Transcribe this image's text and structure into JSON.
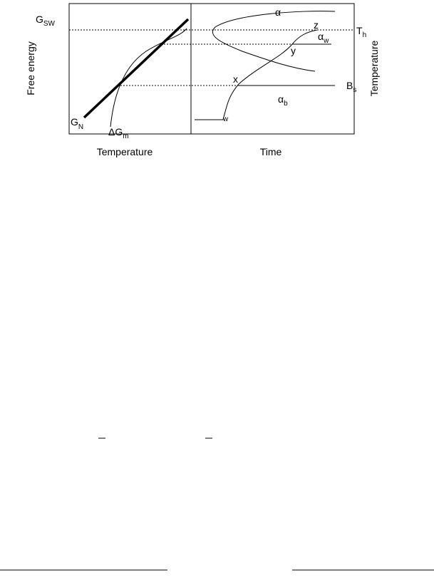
{
  "left_panel": {
    "y_axis_label": "Free energy",
    "x_axis_label": "Temperature",
    "g_sw": {
      "main": "G",
      "sub": "SW"
    },
    "g_n": {
      "main": "G",
      "sub": "N"
    },
    "delta_g_m": {
      "main": "ΔG",
      "sub": "m"
    }
  },
  "right_panel": {
    "y_axis_label": "Temperature",
    "x_axis_label": "Time",
    "alpha": "α",
    "z": "z",
    "alpha_w": {
      "main": "α",
      "sub": "w"
    },
    "t_h": {
      "main": "T",
      "sub": "h"
    },
    "y": "y",
    "x": "x",
    "b_s": {
      "main": "B",
      "sub": "s"
    },
    "alpha_b": {
      "main": "α",
      "sub": "b"
    },
    "w": "w"
  }
}
